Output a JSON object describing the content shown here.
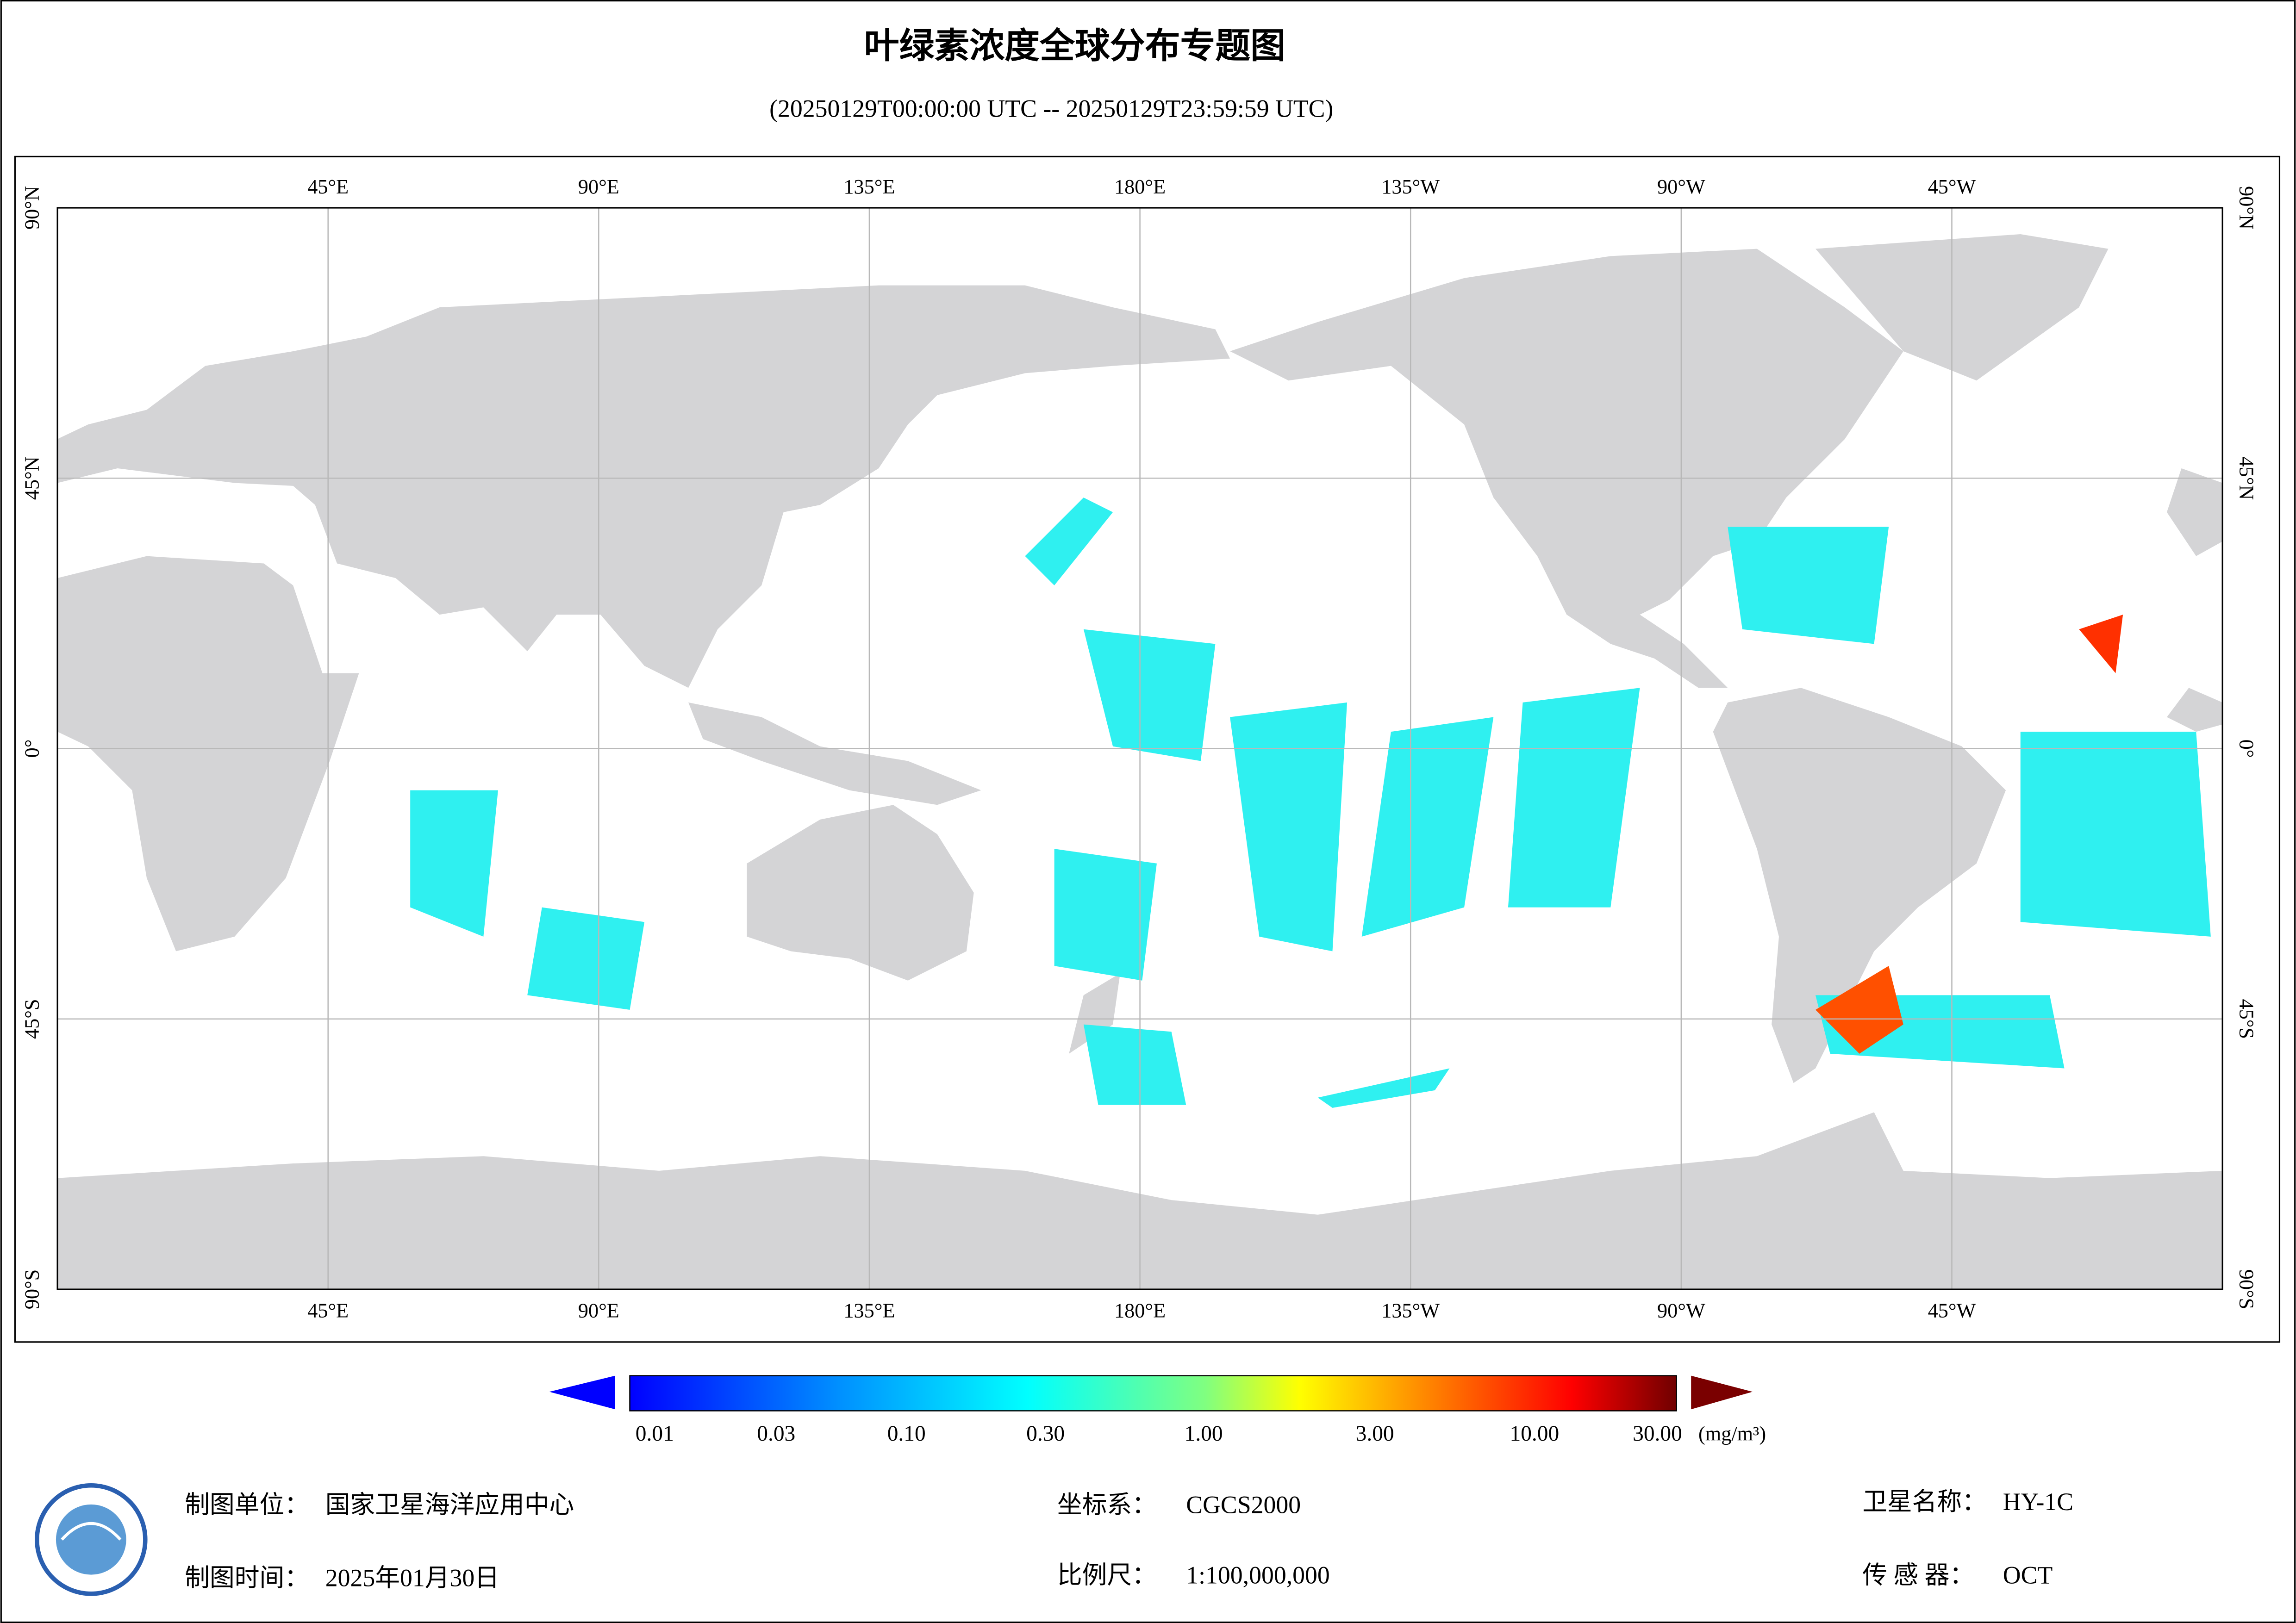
{
  "header": {
    "title": "叶绿素浓度全球分布专题图",
    "subtitle": "(20250129T00:00:00 UTC -- 20250129T23:59:59 UTC)"
  },
  "map": {
    "lon_labels": [
      "45°E",
      "90°E",
      "135°E",
      "180°E",
      "135°W",
      "90°W",
      "45°W"
    ],
    "lat_labels": [
      "90°N",
      "45°N",
      "0°",
      "45°S",
      "90°S"
    ]
  },
  "colorbar": {
    "labels": [
      "0.01",
      "0.03",
      "0.10",
      "0.30",
      "1.00",
      "3.00",
      "10.00",
      "30.00"
    ],
    "unit": "(mg/m³)"
  },
  "footer": {
    "unit_label": "制图单位：",
    "unit": "国家卫星海洋应用中心",
    "date_label": "制图时间：",
    "date": "2025年01月30日",
    "crs_label": "坐标系：",
    "crs": "CGCS2000",
    "scale_label": "比例尺：",
    "scale": "1:100,000,000",
    "satellite_label": "卫星名称：",
    "satellite": "HY-1C",
    "sensor_label": "传 感 器：",
    "sensor": "OCT"
  }
}
